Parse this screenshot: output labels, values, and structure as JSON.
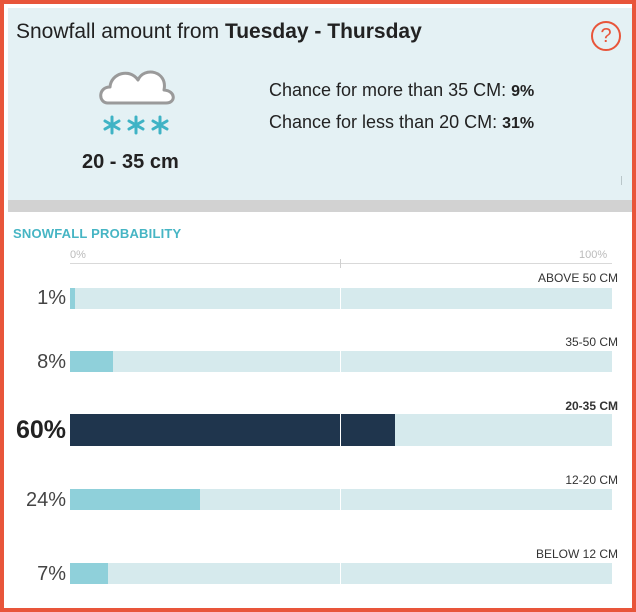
{
  "header": {
    "title_prefix": "Snowfall amount from ",
    "title_range": "Tuesday - Thursday",
    "help_label": "?",
    "icon": "snow-cloud-icon",
    "amount_range": "20 - 35 cm",
    "chance_more_label": "Chance for more than 35 CM: ",
    "chance_more_value": "9%",
    "chance_less_label": "Chance for less than 20 CM: ",
    "chance_less_value": "31%"
  },
  "probability": {
    "section_title": "SNOWFALL PROBABILITY",
    "axis_min": "0%",
    "axis_max": "100%",
    "rows": [
      {
        "label": "ABOVE 50 CM",
        "percent_text": "1%",
        "value": 1,
        "selected": false
      },
      {
        "label": "35-50 CM",
        "percent_text": "8%",
        "value": 8,
        "selected": false
      },
      {
        "label": "20-35 CM",
        "percent_text": "60%",
        "value": 60,
        "selected": true
      },
      {
        "label": "12-20 CM",
        "percent_text": "24%",
        "value": 24,
        "selected": false
      },
      {
        "label": "BELOW 12 CM",
        "percent_text": "7%",
        "value": 7,
        "selected": false
      }
    ]
  },
  "colors": {
    "accent_border": "#e8553a",
    "header_bg": "#e4f1f4",
    "bar_fill": "#8fd0da",
    "bar_selected": "#1f354d",
    "bar_track": "#d6eaed",
    "section_title": "#46b5c4"
  }
}
